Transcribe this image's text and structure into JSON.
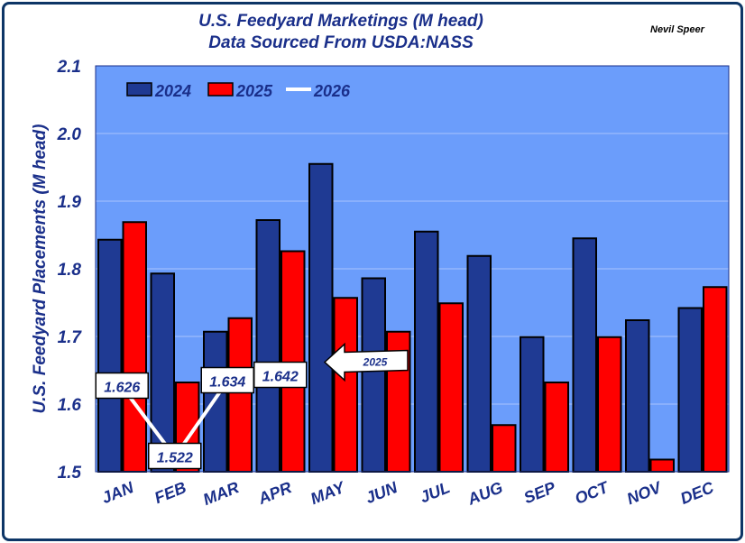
{
  "title_line1": "U.S. Feedyard Marketings (M head)",
  "title_line2": "Data Sourced From USDA:NASS",
  "author": "Nevil Speer",
  "colors": {
    "plot_bg": "#6b9dfb",
    "series_2024": "#1f3a93",
    "series_2025": "#ff0000",
    "series_2026": "#ffffff",
    "text": "#1a2f8a"
  },
  "chart_data": {
    "type": "bar",
    "title": "U.S. Feedyard Marketings (M head)",
    "subtitle": "Data Sourced From USDA:NASS",
    "xlabel": "",
    "ylabel": "U.S. Feedyard Placements (M head)",
    "ylim": [
      1.5,
      2.1
    ],
    "yticks": [
      "1.5",
      "1.6",
      "1.7",
      "1.8",
      "1.9",
      "2.0",
      "2.1"
    ],
    "grid": "horizontal",
    "legend_position": "top-left",
    "categories": [
      "JAN",
      "FEB",
      "MAR",
      "APR",
      "MAY",
      "JUN",
      "JUL",
      "AUG",
      "SEP",
      "OCT",
      "NOV",
      "DEC"
    ],
    "series": [
      {
        "name": "2024",
        "type": "bar",
        "values": [
          1.843,
          1.793,
          1.707,
          1.872,
          1.955,
          1.786,
          1.855,
          1.819,
          1.699,
          1.845,
          1.724,
          1.742
        ]
      },
      {
        "name": "2025",
        "type": "bar",
        "values": [
          1.869,
          1.632,
          1.727,
          1.826,
          1.757,
          1.707,
          1.749,
          1.569,
          1.632,
          1.699,
          1.518,
          1.773
        ]
      },
      {
        "name": "2026",
        "type": "line",
        "values": [
          1.626,
          1.522,
          1.634,
          1.642,
          null,
          null,
          null,
          null,
          null,
          null,
          null,
          null
        ]
      }
    ],
    "data_labels": [
      "1.626",
      "1.522",
      "1.634",
      "1.642"
    ],
    "annotations": [
      {
        "text": "2025",
        "month": "MAY"
      }
    ]
  }
}
